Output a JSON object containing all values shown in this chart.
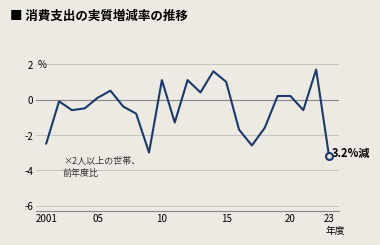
{
  "title": "消費支出の実質増減率の推移",
  "title_icon": "■",
  "ylabel": "%",
  "xlabel_end": "年度",
  "note_line1": "×2人以上の世帯、",
  "note_line2": "前年度比",
  "annotation": "3.2%減",
  "line_color": "#1b3a6b",
  "bg_color": "#ede9e3",
  "years": [
    2001,
    2002,
    2003,
    2004,
    2005,
    2006,
    2007,
    2008,
    2009,
    2010,
    2011,
    2012,
    2013,
    2014,
    2015,
    2016,
    2017,
    2018,
    2019,
    2020,
    2021,
    2022,
    2023
  ],
  "values": [
    -2.5,
    -0.1,
    -0.6,
    -0.5,
    0.1,
    0.5,
    -0.4,
    -0.8,
    -3.0,
    1.1,
    -1.3,
    1.1,
    0.4,
    1.6,
    1.0,
    -1.7,
    -2.6,
    -1.6,
    0.2,
    0.2,
    -0.6,
    1.7,
    -3.2
  ],
  "xlim": [
    2000.2,
    23.8
  ],
  "ylim": [
    -6.3,
    2.8
  ],
  "yticks": [
    -6,
    -4,
    -2,
    0,
    2
  ],
  "xticks": [
    2001,
    2005,
    2010,
    2015,
    2020,
    2023
  ],
  "xticklabels": [
    "2001",
    "05",
    "10",
    "15",
    "20",
    "23"
  ]
}
